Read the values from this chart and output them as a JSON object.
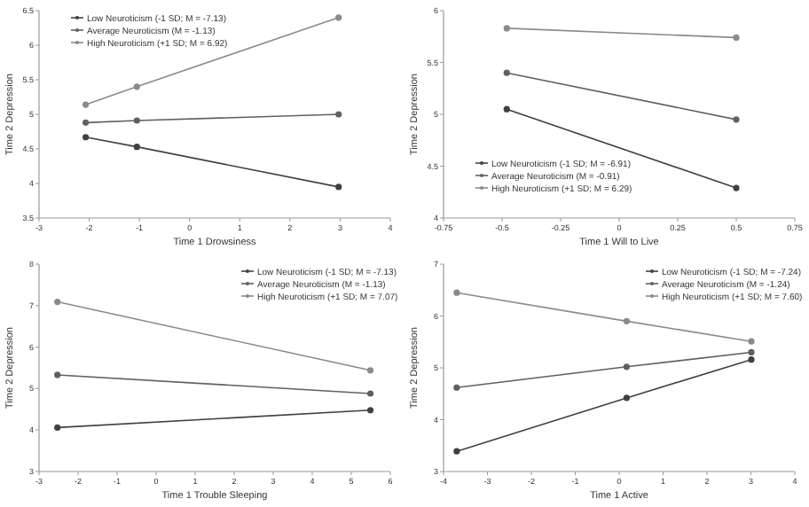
{
  "chart_data": [
    {
      "type": "line",
      "xlabel": "Time 1 Drowsiness",
      "ylabel": "Time 2 Depression",
      "xlim": [
        -3,
        4
      ],
      "xticks": [
        -3,
        -2,
        -1,
        0,
        1,
        2,
        3,
        4
      ],
      "ylim": [
        3.5,
        6.5
      ],
      "yticks": [
        3.5,
        4,
        4.5,
        5,
        5.5,
        6,
        6.5
      ],
      "legend": "top left",
      "marker": "circle",
      "grid": false,
      "series": [
        {
          "name": "Low Neuroticism (-1 SD; M = -7.13)",
          "color": "#404040",
          "x": [
            -2.07,
            -1.05,
            2.97
          ],
          "values": [
            4.67,
            4.53,
            3.95
          ]
        },
        {
          "name": "Average Neuroticism (M = -1.13)",
          "color": "#606060",
          "x": [
            -2.07,
            -1.05,
            2.97
          ],
          "values": [
            4.88,
            4.91,
            5.0
          ]
        },
        {
          "name": "High Neuroticism (+1 SD; M = 6.92)",
          "color": "#8a8a8a",
          "x": [
            -2.07,
            -1.05,
            2.97
          ],
          "values": [
            5.14,
            5.4,
            6.4
          ]
        }
      ]
    },
    {
      "type": "line",
      "xlabel": "Time 1 Will to Live",
      "ylabel": "Time 2 Depression",
      "xlim": [
        -0.75,
        0.75
      ],
      "xticks": [
        -0.75,
        -0.5,
        -0.25,
        0,
        0.25,
        0.5,
        0.75
      ],
      "ylim": [
        4,
        6
      ],
      "yticks": [
        4,
        4.5,
        5,
        5.5,
        6
      ],
      "legend": "bottom left",
      "marker": "circle",
      "grid": false,
      "series": [
        {
          "name": "Low Neuroticism (-1 SD; M = -6.91)",
          "color": "#404040",
          "x": [
            -0.48,
            0.5
          ],
          "values": [
            5.05,
            4.29
          ]
        },
        {
          "name": "Average Neuroticism (M = -0.91)",
          "color": "#606060",
          "x": [
            -0.48,
            0.5
          ],
          "values": [
            5.4,
            4.95
          ]
        },
        {
          "name": "High Neuroticism (+1 SD; M = 6.29)",
          "color": "#8a8a8a",
          "x": [
            -0.48,
            0.5
          ],
          "values": [
            5.83,
            5.74
          ]
        }
      ]
    },
    {
      "type": "line",
      "xlabel": "Time 1 Trouble Sleeping",
      "ylabel": "Time 2 Depression",
      "xlim": [
        -3,
        6
      ],
      "xticks": [
        -3,
        -2,
        -1,
        0,
        1,
        2,
        3,
        4,
        5,
        6
      ],
      "ylim": [
        3,
        8
      ],
      "yticks": [
        3,
        4,
        5,
        6,
        7,
        8
      ],
      "legend": "top right",
      "marker": "circle",
      "grid": false,
      "series": [
        {
          "name": "Low Neuroticism (-1 SD; M = -7.13)",
          "color": "#404040",
          "x": [
            -2.53,
            5.49
          ],
          "values": [
            4.06,
            4.48
          ]
        },
        {
          "name": "Average Neuroticism (M = -1.13)",
          "color": "#606060",
          "x": [
            -2.53,
            5.49
          ],
          "values": [
            5.33,
            4.88
          ]
        },
        {
          "name": "High Neuroticism (+1 SD; M = 7.07)",
          "color": "#8a8a8a",
          "x": [
            -2.53,
            5.49
          ],
          "values": [
            7.09,
            5.44
          ]
        }
      ]
    },
    {
      "type": "line",
      "xlabel": "Time 1 Active",
      "ylabel": "Time 2 Depression",
      "xlim": [
        -4,
        4
      ],
      "xticks": [
        -4,
        -3,
        -2,
        -1,
        0,
        1,
        2,
        3,
        4
      ],
      "ylim": [
        3,
        7
      ],
      "yticks": [
        3,
        4,
        5,
        6,
        7
      ],
      "legend": "top right",
      "marker": "circle",
      "grid": false,
      "series": [
        {
          "name": "Low Neuroticism (-1 SD; M = -7.24)",
          "color": "#404040",
          "x": [
            -3.7,
            0.17,
            3.01
          ],
          "values": [
            3.39,
            4.42,
            5.16
          ]
        },
        {
          "name": "Average Neuroticism (M = -1.24)",
          "color": "#606060",
          "x": [
            -3.7,
            0.17,
            3.01
          ],
          "values": [
            4.62,
            5.02,
            5.3
          ]
        },
        {
          "name": "High Neuroticism (+1 SD; M = 7.60)",
          "color": "#8a8a8a",
          "x": [
            -3.7,
            0.17,
            3.01
          ],
          "values": [
            6.45,
            5.9,
            5.51
          ]
        }
      ]
    }
  ]
}
